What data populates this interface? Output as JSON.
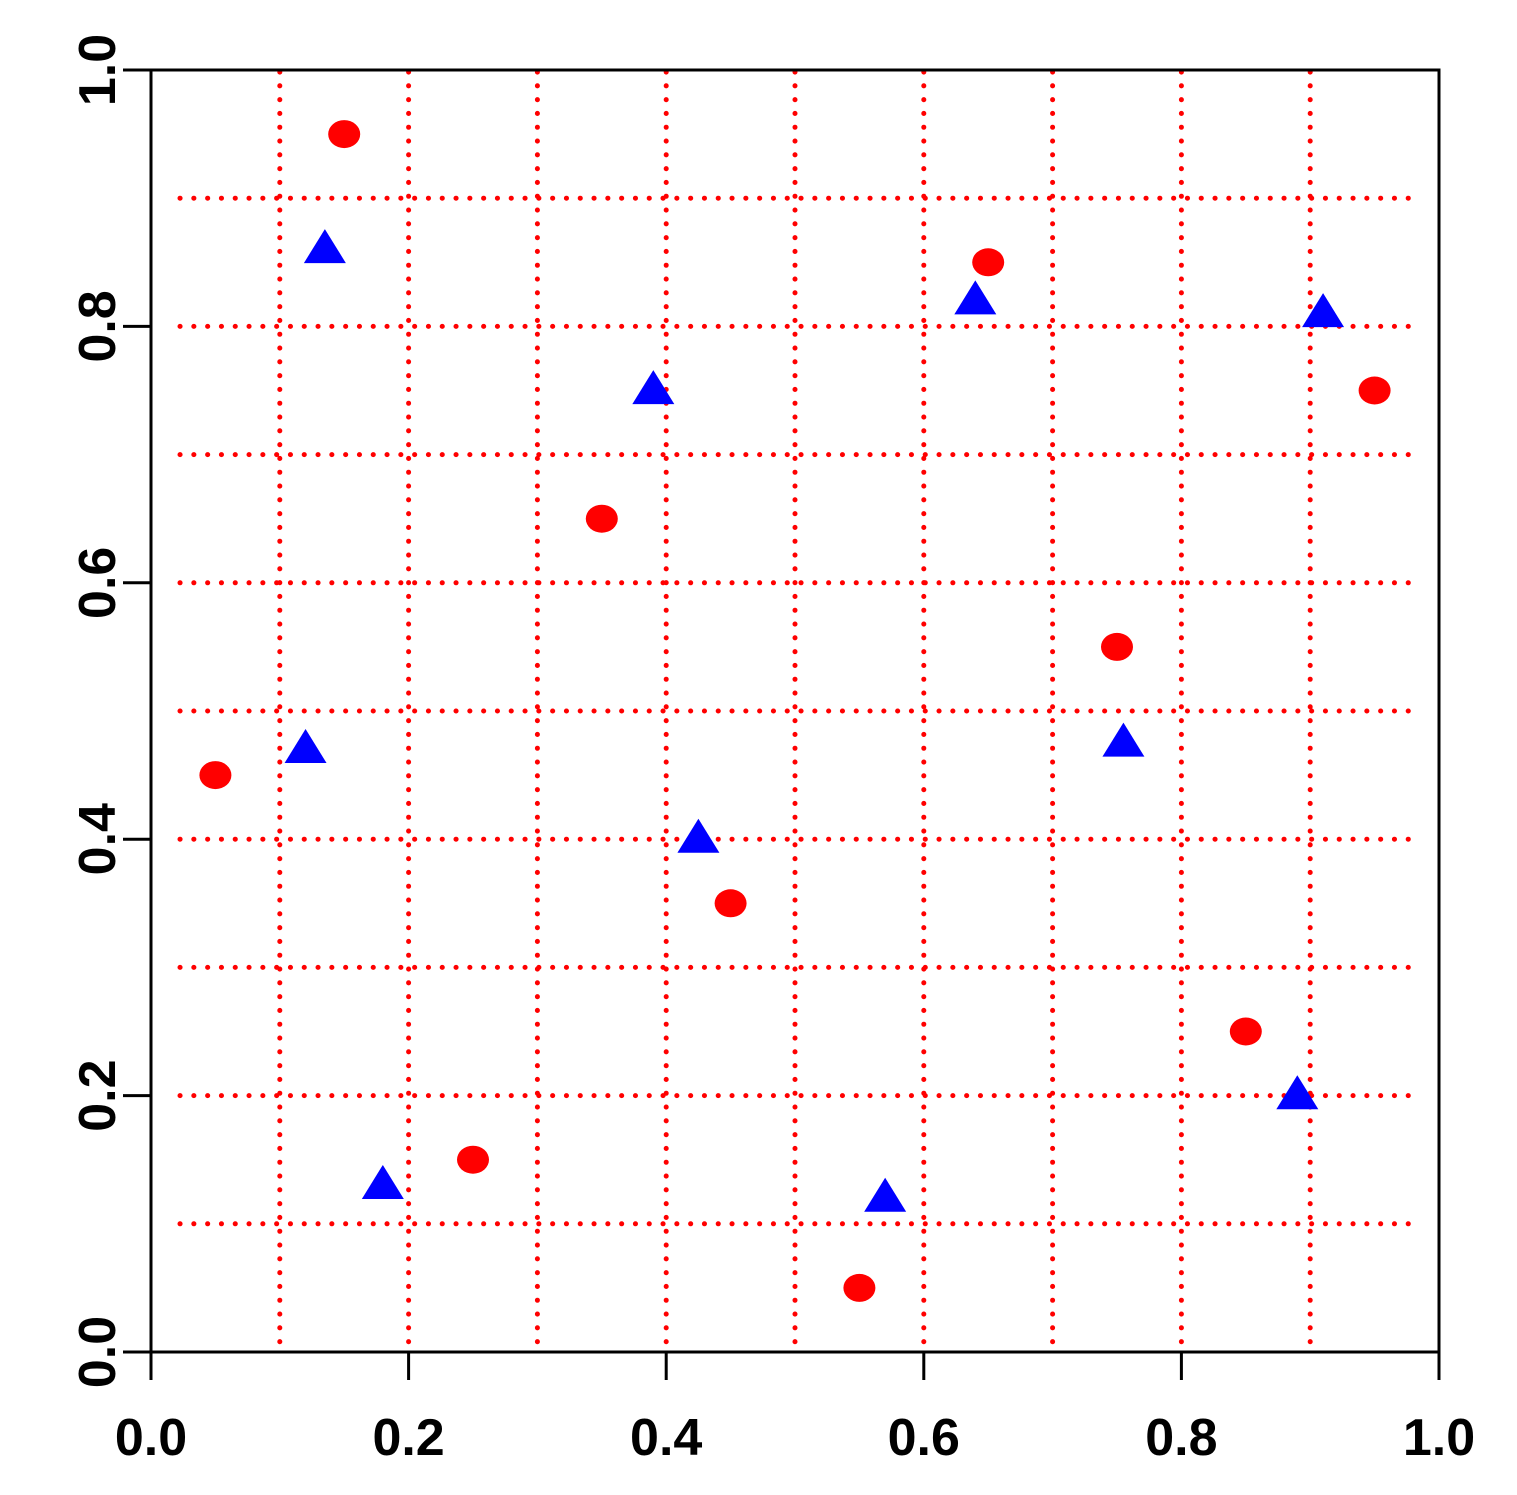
{
  "chart_data": {
    "type": "scatter",
    "title": "",
    "xlabel": "",
    "ylabel": "",
    "xlim": [
      0,
      1
    ],
    "ylim": [
      0,
      1
    ],
    "x_ticks": [
      0.0,
      0.2,
      0.4,
      0.6,
      0.8,
      1.0
    ],
    "y_ticks": [
      0.0,
      0.2,
      0.4,
      0.6,
      0.8,
      1.0
    ],
    "x_tick_labels": [
      "0.0",
      "0.2",
      "0.4",
      "0.6",
      "0.8",
      "1.0"
    ],
    "y_tick_labels": [
      "0.0",
      "0.2",
      "0.4",
      "0.6",
      "0.8",
      "1.0"
    ],
    "grid": true,
    "grid_style": "dotted",
    "grid_color": "#ff0000",
    "grid_x": [
      0.1,
      0.2,
      0.3,
      0.4,
      0.5,
      0.6,
      0.7,
      0.8,
      0.9
    ],
    "grid_y": [
      0.1,
      0.2,
      0.3,
      0.4,
      0.5,
      0.6,
      0.7,
      0.8,
      0.9
    ],
    "legend": "none",
    "series": [
      {
        "marker": "circle",
        "color": "#ff0000",
        "points": [
          {
            "x": 0.05,
            "y": 0.45
          },
          {
            "x": 0.15,
            "y": 0.95
          },
          {
            "x": 0.25,
            "y": 0.15
          },
          {
            "x": 0.35,
            "y": 0.65
          },
          {
            "x": 0.45,
            "y": 0.35
          },
          {
            "x": 0.55,
            "y": 0.05
          },
          {
            "x": 0.65,
            "y": 0.85
          },
          {
            "x": 0.75,
            "y": 0.55
          },
          {
            "x": 0.85,
            "y": 0.25
          },
          {
            "x": 0.95,
            "y": 0.75
          }
        ]
      },
      {
        "marker": "triangle",
        "color": "#0000ff",
        "points": [
          {
            "x": 0.135,
            "y": 0.86
          },
          {
            "x": 0.12,
            "y": 0.47
          },
          {
            "x": 0.18,
            "y": 0.13
          },
          {
            "x": 0.39,
            "y": 0.75
          },
          {
            "x": 0.425,
            "y": 0.4
          },
          {
            "x": 0.57,
            "y": 0.12
          },
          {
            "x": 0.64,
            "y": 0.82
          },
          {
            "x": 0.755,
            "y": 0.475
          },
          {
            "x": 0.89,
            "y": 0.2
          },
          {
            "x": 0.91,
            "y": 0.81
          }
        ]
      }
    ]
  }
}
